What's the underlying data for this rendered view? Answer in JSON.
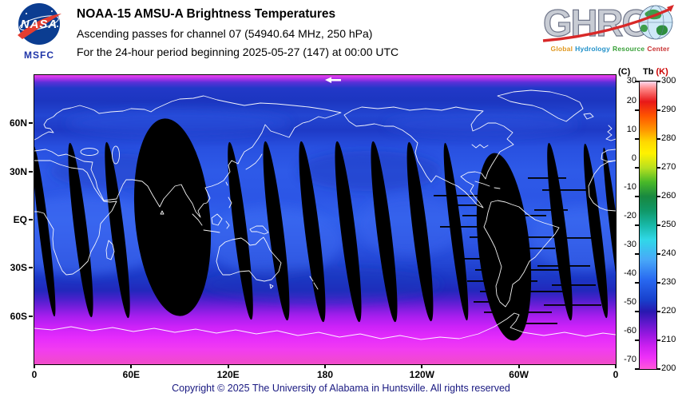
{
  "header": {
    "nasa": {
      "logo_text": "NASA",
      "sublabel": "MSFC"
    },
    "title_line1": "NOAA-15 AMSU-A Brightness Temperatures",
    "title_line2": "Ascending passes for channel 07 (54940.64 MHz, 250 hPa)",
    "title_line3": "For the 24-hour period beginning 2025-05-27 (147) at 00:00 UTC",
    "ghrc": {
      "logo_text": "GHRC",
      "subtitle_words": [
        "Global",
        "Hydrology",
        "Resource",
        "Center"
      ],
      "subtitle_colors": [
        "#e09820",
        "#2090c8",
        "#38a038",
        "#c83030"
      ]
    }
  },
  "map": {
    "lat_labels": [
      {
        "text": "60N",
        "f": 0.1667
      },
      {
        "text": "30N",
        "f": 0.3333
      },
      {
        "text": "EQ",
        "f": 0.5
      },
      {
        "text": "30S",
        "f": 0.6667
      },
      {
        "text": "60S",
        "f": 0.8333
      }
    ],
    "lon_labels": [
      {
        "text": "0",
        "f": 0
      },
      {
        "text": "60E",
        "f": 0.1667
      },
      {
        "text": "120E",
        "f": 0.3333
      },
      {
        "text": "180",
        "f": 0.5
      },
      {
        "text": "120W",
        "f": 0.6667
      },
      {
        "text": "60W",
        "f": 0.8333
      },
      {
        "text": "0",
        "f": 1
      }
    ]
  },
  "colorbar": {
    "label_c": "(C)",
    "label_tb": "Tb",
    "label_k": "(K)",
    "k_values": [
      300,
      290,
      280,
      270,
      260,
      250,
      240,
      230,
      220,
      210,
      200
    ],
    "c_values": [
      30,
      20,
      10,
      0,
      -10,
      -20,
      -30,
      -40,
      -50,
      -60,
      -70
    ],
    "k_range": [
      200,
      300
    ]
  },
  "footer": {
    "copyright": "Copyright © 2025 The University of Alabama in Huntsville. All rights reserved"
  }
}
